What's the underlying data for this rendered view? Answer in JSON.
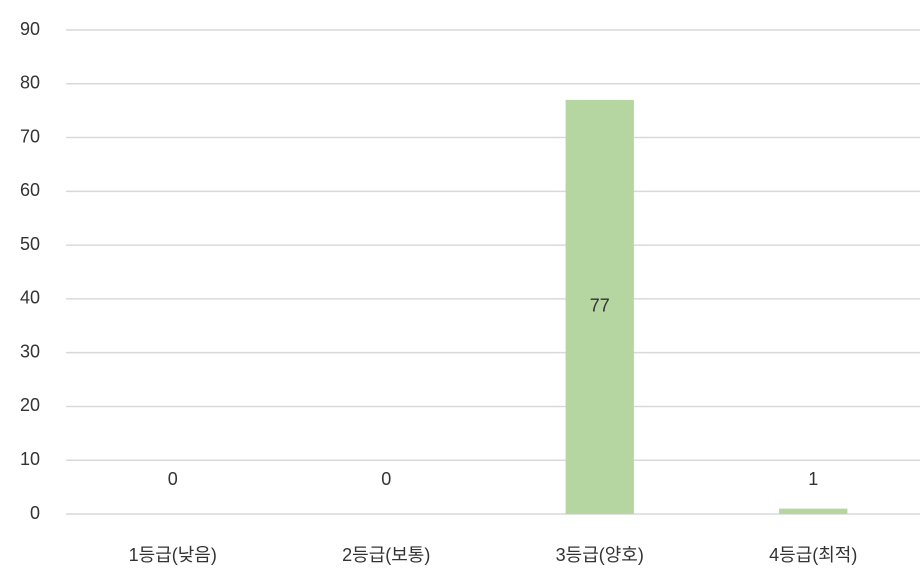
{
  "chart_data": {
    "type": "bar",
    "categories": [
      "1등급(낮음)",
      "2등급(보통)",
      "3등급(양호)",
      "4등급(최적)"
    ],
    "values": [
      0,
      0,
      77,
      1
    ],
    "color": "#b5d6a0",
    "ylim": [
      0,
      90
    ],
    "yticks": [
      0,
      10,
      20,
      30,
      40,
      50,
      60,
      70,
      80,
      90
    ],
    "grid": true
  }
}
